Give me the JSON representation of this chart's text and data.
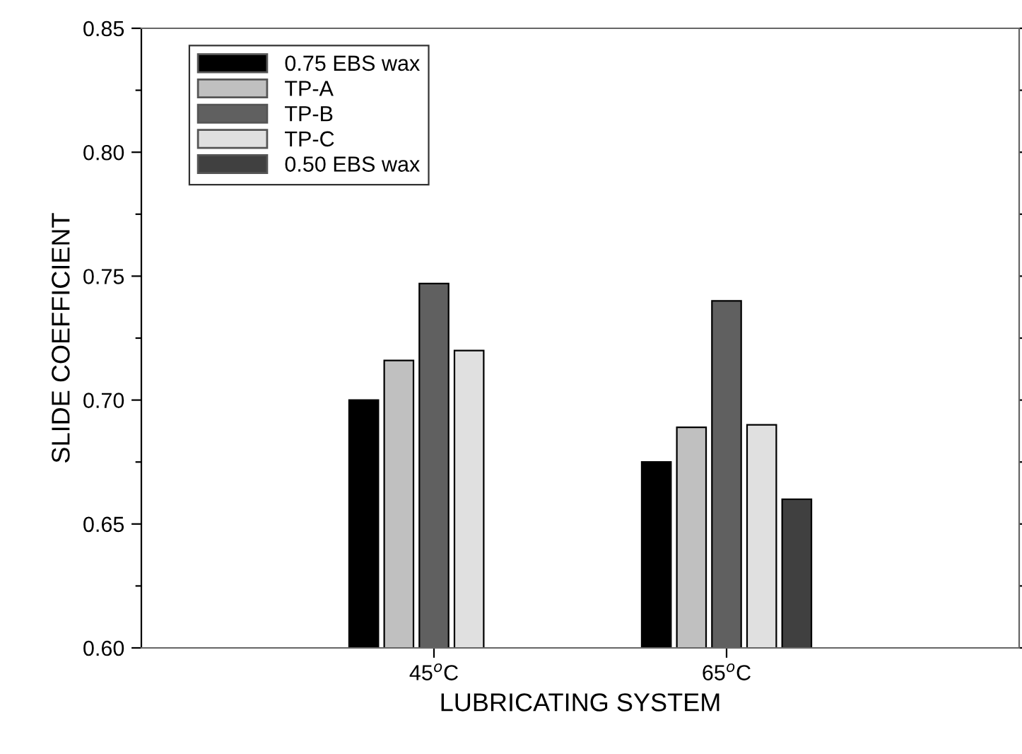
{
  "chart_data": {
    "type": "bar",
    "xlabel": "LUBRICATING SYSTEM",
    "ylabel": "SLIDE COEFFICIENT",
    "categories": [
      "45$^{o}$C",
      "65$^{o}$C"
    ],
    "series": [
      {
        "name": "0.75 EBS wax",
        "color": "#000000",
        "values": [
          0.7,
          0.675
        ]
      },
      {
        "name": "TP-A",
        "color": "#c0c0c0",
        "values": [
          0.716,
          0.689
        ]
      },
      {
        "name": "TP-B",
        "color": "#606060",
        "values": [
          0.747,
          0.74
        ]
      },
      {
        "name": "TP-C",
        "color": "#e0e0e0",
        "values": [
          0.72,
          0.69
        ]
      },
      {
        "name": "0.50 EBS wax",
        "color": "#404040",
        "values": [
          null,
          0.66
        ]
      }
    ],
    "ylim": [
      0.6,
      0.85
    ],
    "yticks": [
      {
        "value": 0.6,
        "label": "0.60"
      },
      {
        "value": 0.625,
        "label": null
      },
      {
        "value": 0.65,
        "label": "0.65"
      },
      {
        "value": 0.675,
        "label": null
      },
      {
        "value": 0.7,
        "label": "0.70"
      },
      {
        "value": 0.725,
        "label": null
      },
      {
        "value": 0.75,
        "label": "0.75"
      },
      {
        "value": 0.775,
        "label": null
      },
      {
        "value": 0.8,
        "label": "0.80"
      },
      {
        "value": 0.825,
        "label": null
      },
      {
        "value": 0.85,
        "label": "0.85"
      }
    ],
    "grid": false,
    "legend": "top left"
  }
}
